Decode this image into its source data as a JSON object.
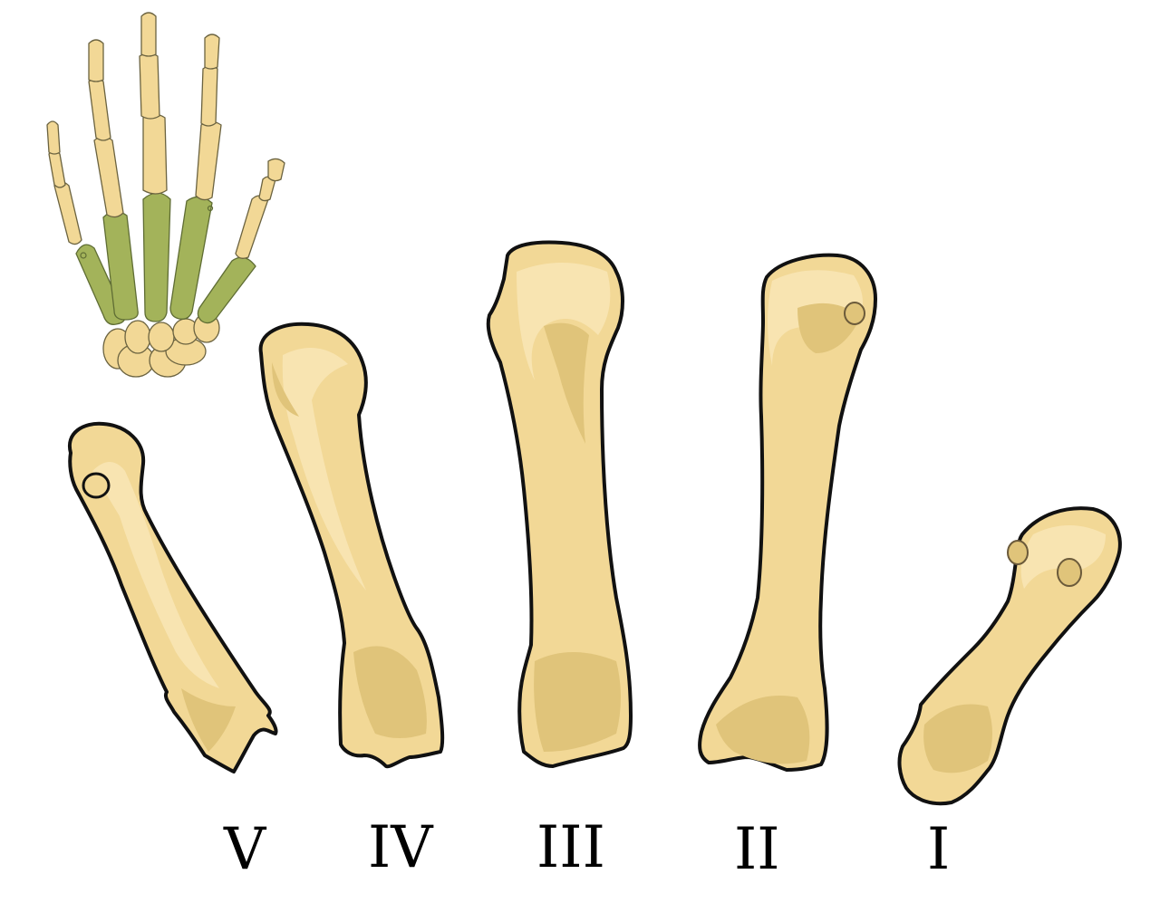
{
  "labels": {
    "v": "V",
    "iv": "IV",
    "iii": "III",
    "ii": "II",
    "i": "I"
  },
  "colors": {
    "bone": "#f2d896",
    "bone_shade": "#e0c47a",
    "bone_highlight": "#f8e6b4",
    "highlight_green": "#a3b35a",
    "outline": "#111111"
  },
  "icons": {
    "thumbnail": "hand-skeleton-icon"
  }
}
